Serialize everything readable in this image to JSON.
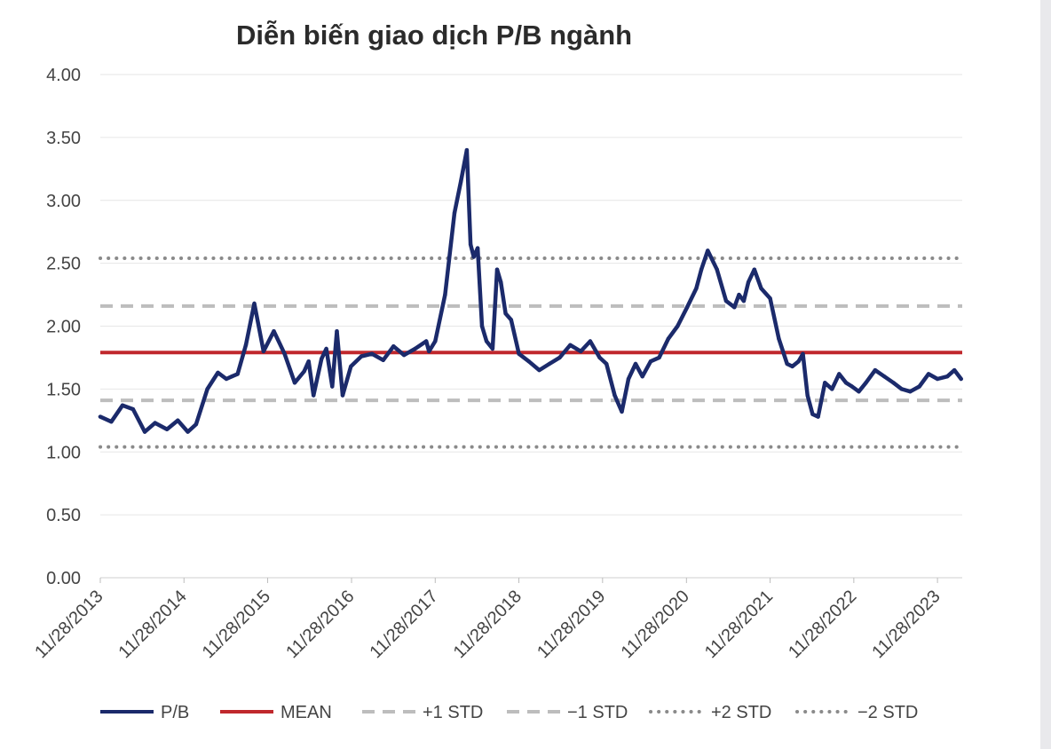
{
  "chart_data": {
    "type": "line",
    "title": "Diễn biến giao dịch P/B ngành",
    "ylim": [
      0,
      4
    ],
    "y_ticks": [
      "0.00",
      "0.50",
      "1.00",
      "1.50",
      "2.00",
      "2.50",
      "3.00",
      "3.50",
      "4.00"
    ],
    "x_ticks": [
      "11/28/2013",
      "11/28/2014",
      "11/28/2015",
      "11/28/2016",
      "11/28/2017",
      "11/28/2018",
      "11/28/2019",
      "11/28/2020",
      "11/28/2021",
      "11/28/2022",
      "11/28/2023"
    ],
    "grid": true,
    "legend_position": "bottom",
    "series": [
      {
        "name": "P/B",
        "color": "#1b2a6b",
        "style": "solid",
        "x": [
          "2013-11-28",
          "2014-01-15",
          "2014-03-05",
          "2014-04-20",
          "2014-06-10",
          "2014-07-25",
          "2014-09-15",
          "2014-11-01",
          "2014-12-15",
          "2015-01-20",
          "2015-03-10",
          "2015-04-25",
          "2015-06-01",
          "2015-06-25",
          "2015-07-20",
          "2015-08-25",
          "2015-10-01",
          "2015-11-10",
          "2015-12-25",
          "2016-02-10",
          "2016-03-25",
          "2016-05-05",
          "2016-05-25",
          "2016-06-15",
          "2016-07-20",
          "2016-08-10",
          "2016-09-05",
          "2016-09-25",
          "2016-10-20",
          "2016-11-25",
          "2017-01-10",
          "2017-02-25",
          "2017-04-15",
          "2017-05-30",
          "2017-07-15",
          "2017-09-01",
          "2017-10-20",
          "2017-11-01",
          "2017-11-28",
          "2018-01-10",
          "2018-02-20",
          "2018-03-20",
          "2018-04-15",
          "2018-05-01",
          "2018-05-15",
          "2018-06-01",
          "2018-06-20",
          "2018-07-10",
          "2018-08-05",
          "2018-08-25",
          "2018-09-10",
          "2018-10-01",
          "2018-10-25",
          "2018-11-28",
          "2019-01-10",
          "2019-02-25",
          "2019-04-10",
          "2019-05-25",
          "2019-07-10",
          "2019-08-25",
          "2019-10-05",
          "2019-11-15",
          "2019-12-15",
          "2020-01-20",
          "2020-02-20",
          "2020-03-20",
          "2020-04-20",
          "2020-05-20",
          "2020-06-25",
          "2020-08-01",
          "2020-09-10",
          "2020-10-20",
          "2020-12-01",
          "2021-01-10",
          "2021-02-01",
          "2021-03-01",
          "2021-04-10",
          "2021-05-20",
          "2021-06-25",
          "2021-07-15",
          "2021-08-05",
          "2021-08-25",
          "2021-09-20",
          "2021-10-20",
          "2021-11-28",
          "2022-01-05",
          "2022-02-10",
          "2022-03-05",
          "2022-04-01",
          "2022-04-20",
          "2022-05-10",
          "2022-06-01",
          "2022-06-25",
          "2022-07-25",
          "2022-08-25",
          "2022-09-25",
          "2022-10-25",
          "2022-11-20",
          "2022-12-20",
          "2023-01-20",
          "2023-03-01",
          "2023-04-10",
          "2023-05-20",
          "2023-06-25",
          "2023-08-01",
          "2023-09-10",
          "2023-10-20",
          "2023-11-28",
          "2024-01-10",
          "2024-02-10",
          "2024-03-10"
        ],
        "values": [
          1.28,
          1.24,
          1.37,
          1.34,
          1.16,
          1.23,
          1.18,
          1.25,
          1.16,
          1.22,
          1.5,
          1.63,
          1.58,
          1.6,
          1.62,
          1.85,
          2.18,
          1.8,
          1.96,
          1.78,
          1.55,
          1.64,
          1.72,
          1.45,
          1.74,
          1.82,
          1.52,
          1.96,
          1.45,
          1.68,
          1.76,
          1.78,
          1.73,
          1.84,
          1.77,
          1.82,
          1.88,
          1.8,
          1.88,
          2.25,
          2.9,
          3.15,
          3.4,
          2.65,
          2.55,
          2.62,
          2.0,
          1.88,
          1.82,
          2.45,
          2.35,
          2.1,
          2.05,
          1.78,
          1.72,
          1.65,
          1.7,
          1.75,
          1.85,
          1.8,
          1.88,
          1.75,
          1.7,
          1.45,
          1.32,
          1.58,
          1.7,
          1.6,
          1.72,
          1.75,
          1.9,
          2.0,
          2.15,
          2.3,
          2.45,
          2.6,
          2.45,
          2.2,
          2.15,
          2.25,
          2.2,
          2.35,
          2.45,
          2.3,
          2.22,
          1.9,
          1.7,
          1.68,
          1.72,
          1.78,
          1.45,
          1.3,
          1.28,
          1.55,
          1.5,
          1.62,
          1.55,
          1.52,
          1.48,
          1.55,
          1.65,
          1.6,
          1.55,
          1.5,
          1.48,
          1.52,
          1.62,
          1.58,
          1.6,
          1.65,
          1.58
        ]
      },
      {
        "name": "MEAN",
        "color": "#c0282d",
        "style": "solid",
        "value": 1.79
      },
      {
        "name": "+1 STD",
        "color": "#bdbdbd",
        "style": "dashed",
        "value": 2.16
      },
      {
        "name": "−1 STD",
        "color": "#bdbdbd",
        "style": "dashed",
        "value": 1.41
      },
      {
        "name": "+2 STD",
        "color": "#8a8a8a",
        "style": "dotted",
        "value": 2.54
      },
      {
        "name": "−2 STD",
        "color": "#8a8a8a",
        "style": "dotted",
        "value": 1.04
      }
    ]
  }
}
